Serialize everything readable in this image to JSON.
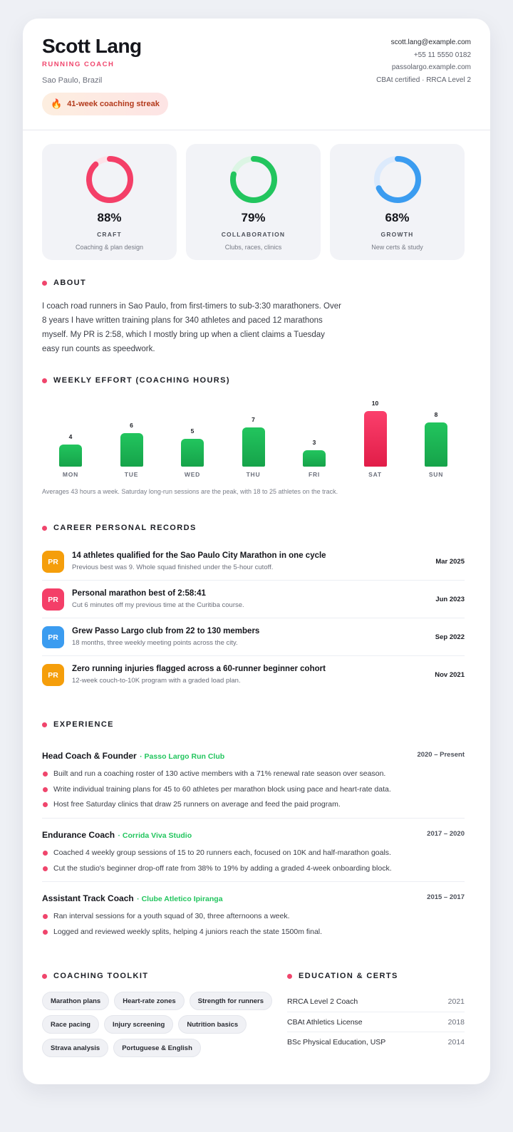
{
  "header": {
    "name": "Scott Lang",
    "role": "RUNNING COACH",
    "location": "Sao Paulo, Brazil",
    "streak": "41-week coaching streak",
    "contact": {
      "email": "scott.lang@example.com",
      "phone": "+55 11 5550 0182",
      "site": "passolargo.example.com",
      "certs": "CBAt certified · RRCA Level 2"
    }
  },
  "stats": [
    {
      "pct_text": "88%",
      "value": 0.88,
      "label": "CRAFT",
      "sub": "Coaching & plan design",
      "color": "#f43f68",
      "track": "#fde2e8"
    },
    {
      "pct_text": "79%",
      "value": 0.79,
      "label": "COLLABORATION",
      "sub": "Clubs, races, clinics",
      "color": "#22c55e",
      "track": "#dcf5e4"
    },
    {
      "pct_text": "68%",
      "value": 0.68,
      "label": "GROWTH",
      "sub": "New certs & study",
      "color": "#3b9cf0",
      "track": "#dceafc"
    }
  ],
  "about": {
    "title": "ABOUT",
    "text": "I coach road runners in Sao Paulo, from first-timers to sub-3:30 marathoners. Over 8 years I have written training plans for 340 athletes and paced 12 marathons myself. My PR is 2:58, which I mostly bring up when a client claims a Tuesday easy run counts as speedwork."
  },
  "weekly": {
    "title": "WEEKLY EFFORT (COACHING HOURS)",
    "note": "Averages 43 hours a week. Saturday long-run sessions are the peak, with 18 to 25 athletes on the track."
  },
  "chart_data": {
    "type": "bar",
    "categories": [
      "MON",
      "TUE",
      "WED",
      "THU",
      "FRI",
      "SAT",
      "SUN"
    ],
    "values": [
      4,
      6,
      5,
      7,
      3,
      10,
      8
    ],
    "title": "WEEKLY EFFORT (COACHING HOURS)",
    "xlabel": "",
    "ylabel": "",
    "highlight": "SAT",
    "colors": {
      "default": "#1fb457",
      "highlight": "#f43f68"
    }
  },
  "records": {
    "title": "CAREER PERSONAL RECORDS",
    "items": [
      {
        "badge": "PR",
        "color": "#f59e0b",
        "title": "14 athletes qualified for the Sao Paulo City Marathon in one cycle",
        "desc": "Previous best was 9. Whole squad finished under the 5-hour cutoff.",
        "date": "Mar 2025"
      },
      {
        "badge": "PR",
        "color": "#f43f68",
        "title": "Personal marathon best of 2:58:41",
        "desc": "Cut 6 minutes off my previous time at the Curitiba course.",
        "date": "Jun 2023"
      },
      {
        "badge": "PR",
        "color": "#3b9cf0",
        "title": "Grew Passo Largo club from 22 to 130 members",
        "desc": "18 months, three weekly meeting points across the city.",
        "date": "Sep 2022"
      },
      {
        "badge": "PR",
        "color": "#f59e0b",
        "title": "Zero running injuries flagged across a 60-runner beginner cohort",
        "desc": "12-week couch-to-10K program with a graded load plan.",
        "date": "Nov 2021"
      }
    ]
  },
  "experience": {
    "title": "EXPERIENCE",
    "jobs": [
      {
        "title": "Head Coach & Founder",
        "org": "· Passo Largo Run Club",
        "years": "2020 – Present",
        "bullets": [
          "Built and run a coaching roster of 130 active members with a 71% renewal rate season over season.",
          "Write individual training plans for 45 to 60 athletes per marathon block using pace and heart-rate data.",
          "Host free Saturday clinics that draw 25 runners on average and feed the paid program."
        ]
      },
      {
        "title": "Endurance Coach",
        "org": "· Corrida Viva Studio",
        "years": "2017 – 2020",
        "bullets": [
          "Coached 4 weekly group sessions of 15 to 20 runners each, focused on 10K and half-marathon goals.",
          "Cut the studio's beginner drop-off rate from 38% to 19% by adding a graded 4-week onboarding block."
        ]
      },
      {
        "title": "Assistant Track Coach",
        "org": "· Clube Atletico Ipiranga",
        "years": "2015 – 2017",
        "bullets": [
          "Ran interval sessions for a youth squad of 30, three afternoons a week.",
          "Logged and reviewed weekly splits, helping 4 juniors reach the state 1500m final."
        ]
      }
    ]
  },
  "toolkit": {
    "title": "COACHING TOOLKIT",
    "chips": [
      "Marathon plans",
      "Heart-rate zones",
      "Strength for runners",
      "Race pacing",
      "Injury screening",
      "Nutrition basics",
      "Strava analysis",
      "Portuguese & English"
    ]
  },
  "education": {
    "title": "EDUCATION & CERTS",
    "items": [
      {
        "name": "RRCA Level 2 Coach",
        "year": "2021"
      },
      {
        "name": "CBAt Athletics License",
        "year": "2018"
      },
      {
        "name": "BSc Physical Education, USP",
        "year": "2014"
      }
    ]
  }
}
